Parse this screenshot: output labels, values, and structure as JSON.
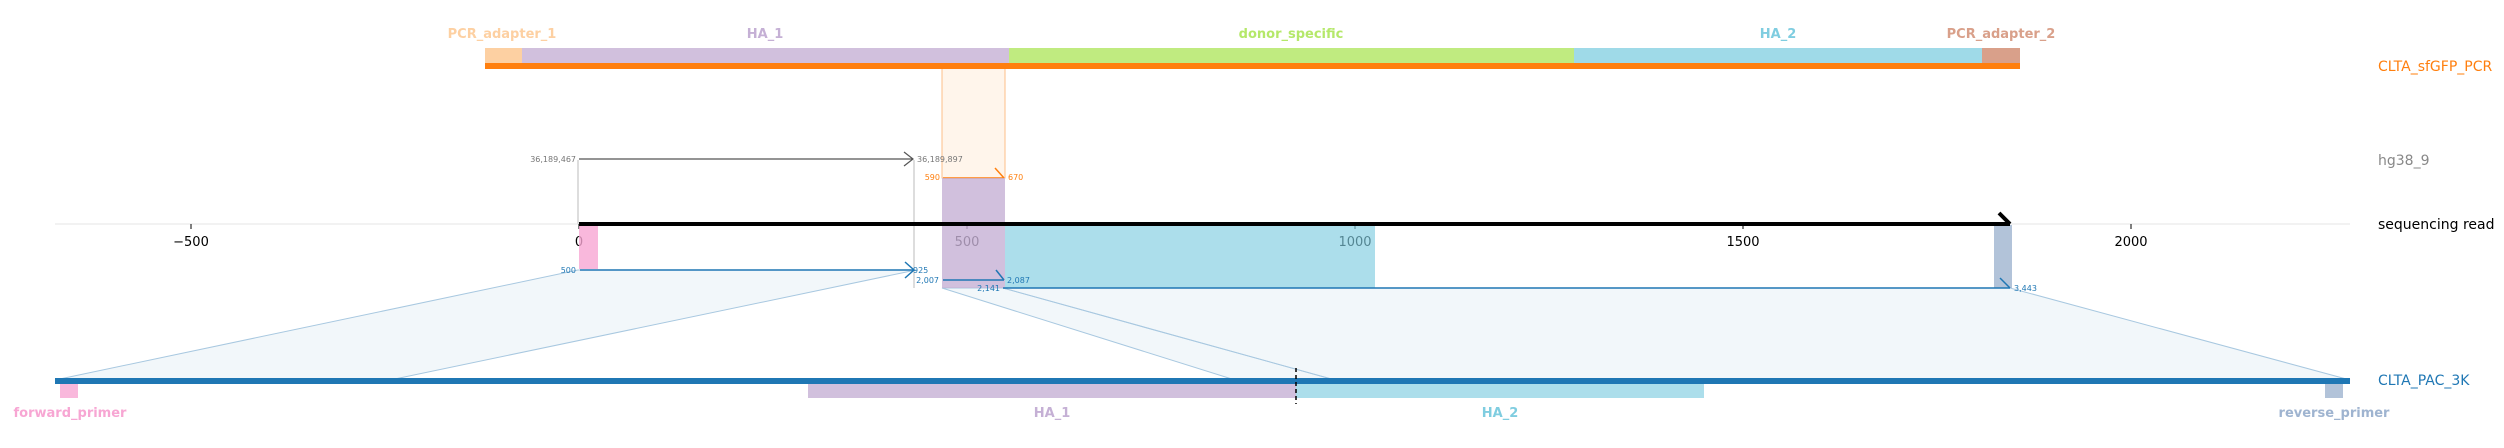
{
  "tracks": [
    {
      "label": "CLTA_sfGFP_PCR",
      "color": "#ff7f0e"
    },
    {
      "label": "hg38_9",
      "color": "#888888"
    },
    {
      "label": "sequencing read",
      "color": "#000000"
    },
    {
      "label": "CLTA_PAC_3K",
      "color": "#1f77b4"
    }
  ],
  "axis": {
    "ticks": [
      "−500",
      "0",
      "500",
      "1000",
      "1500",
      "2000"
    ]
  },
  "pcr_features": [
    {
      "label": "PCR_adapter_1",
      "color": "#fdd0a2"
    },
    {
      "label": "HA_1",
      "color": "#c5b0d5"
    },
    {
      "label": "donor_specific",
      "color": "#b5e86a"
    },
    {
      "label": "HA_2",
      "color": "#7fcde0"
    },
    {
      "label": "PCR_adapter_2",
      "color": "#d9a08a"
    }
  ],
  "pac_features": [
    {
      "label": "forward_primer",
      "color": "#f7a6d3"
    },
    {
      "label": "HA_1",
      "color": "#c5b0d5"
    },
    {
      "label": "HA_2",
      "color": "#7fcde0"
    },
    {
      "label": "reverse_primer",
      "color": "#9fb4d0"
    }
  ],
  "coords": {
    "hg_start": "36,189,467",
    "hg_end": "36,189,897",
    "pcr_start": "590",
    "pcr_end": "670",
    "pac1_start": "500",
    "pac1_end": "925",
    "pac2_a": "2,007",
    "pac2_b": "2,087",
    "pac3_start": "2,141",
    "pac3_end": "3,443"
  }
}
